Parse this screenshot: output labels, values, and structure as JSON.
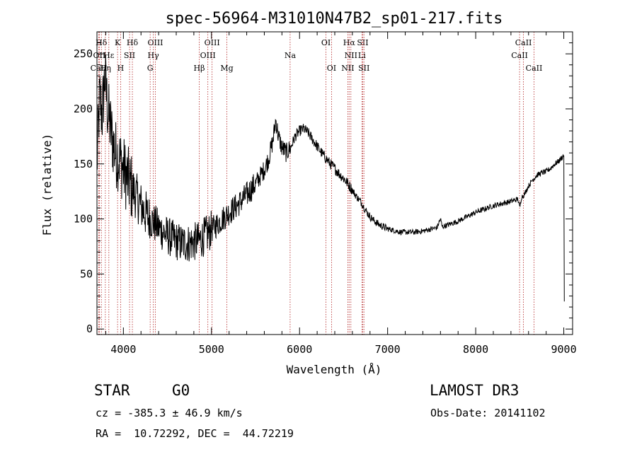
{
  "chart_data": {
    "type": "line",
    "title": "spec-56964-M31010N47B2_sp01-217.fits",
    "xlabel": "Wavelength (Å)",
    "ylabel": "Flux (relative)",
    "xlim": [
      3700,
      9100
    ],
    "ylim": [
      -5,
      270
    ],
    "x_ticks": [
      4000,
      5000,
      6000,
      7000,
      8000,
      9000
    ],
    "y_ticks": [
      0,
      50,
      100,
      150,
      200,
      250
    ],
    "series": [
      {
        "name": "flux",
        "points": [
          [
            3700,
            150
          ],
          [
            3730,
            210
          ],
          [
            3760,
            195
          ],
          [
            3790,
            230
          ],
          [
            3820,
            200
          ],
          [
            3850,
            185
          ],
          [
            3880,
            170
          ],
          [
            3910,
            160
          ],
          [
            3950,
            155
          ],
          [
            4000,
            145
          ],
          [
            4050,
            135
          ],
          [
            4100,
            128
          ],
          [
            4150,
            120
          ],
          [
            4200,
            112
          ],
          [
            4250,
            105
          ],
          [
            4300,
            100
          ],
          [
            4350,
            96
          ],
          [
            4400,
            92
          ],
          [
            4450,
            88
          ],
          [
            4500,
            85
          ],
          [
            4550,
            82
          ],
          [
            4600,
            80
          ],
          [
            4650,
            78
          ],
          [
            4700,
            78
          ],
          [
            4750,
            78
          ],
          [
            4800,
            79
          ],
          [
            4850,
            80
          ],
          [
            4900,
            83
          ],
          [
            4950,
            86
          ],
          [
            5000,
            90
          ],
          [
            5100,
            98
          ],
          [
            5200,
            106
          ],
          [
            5300,
            113
          ],
          [
            5400,
            122
          ],
          [
            5500,
            132
          ],
          [
            5600,
            145
          ],
          [
            5650,
            155
          ],
          [
            5700,
            172
          ],
          [
            5730,
            190
          ],
          [
            5760,
            175
          ],
          [
            5800,
            165
          ],
          [
            5850,
            160
          ],
          [
            5900,
            165
          ],
          [
            5950,
            175
          ],
          [
            6000,
            180
          ],
          [
            6050,
            182
          ],
          [
            6100,
            178
          ],
          [
            6150,
            172
          ],
          [
            6200,
            166
          ],
          [
            6250,
            160
          ],
          [
            6300,
            155
          ],
          [
            6350,
            150
          ],
          [
            6400,
            146
          ],
          [
            6450,
            141
          ],
          [
            6500,
            137
          ],
          [
            6550,
            132
          ],
          [
            6600,
            126
          ],
          [
            6650,
            120
          ],
          [
            6700,
            115
          ],
          [
            6750,
            108
          ],
          [
            6800,
            102
          ],
          [
            6850,
            98
          ],
          [
            6900,
            95
          ],
          [
            6950,
            93
          ],
          [
            7000,
            91
          ],
          [
            7050,
            90
          ],
          [
            7100,
            89
          ],
          [
            7150,
            88
          ],
          [
            7200,
            88
          ],
          [
            7300,
            88
          ],
          [
            7400,
            89
          ],
          [
            7500,
            91
          ],
          [
            7560,
            92
          ],
          [
            7600,
            100
          ],
          [
            7620,
            93
          ],
          [
            7700,
            95
          ],
          [
            7800,
            98
          ],
          [
            7900,
            102
          ],
          [
            8000,
            106
          ],
          [
            8100,
            109
          ],
          [
            8200,
            112
          ],
          [
            8300,
            114
          ],
          [
            8400,
            116
          ],
          [
            8480,
            118
          ],
          [
            8500,
            110
          ],
          [
            8520,
            120
          ],
          [
            8550,
            122
          ],
          [
            8600,
            130
          ],
          [
            8650,
            136
          ],
          [
            8700,
            140
          ],
          [
            8750,
            142
          ],
          [
            8800,
            143
          ],
          [
            8850,
            146
          ],
          [
            8900,
            150
          ],
          [
            8950,
            153
          ],
          [
            9000,
            158
          ],
          [
            9003,
            100
          ],
          [
            9006,
            25
          ]
        ]
      }
    ],
    "spectral_lines": [
      {
        "label": "Hδ",
        "wavelength": 3750,
        "row": 0
      },
      {
        "label": "K",
        "wavelength": 3934,
        "row": 0
      },
      {
        "label": "Hδ",
        "wavelength": 4102,
        "row": 0
      },
      {
        "label": "OIII",
        "wavelength": 4363,
        "row": 0
      },
      {
        "label": "OIII",
        "wavelength": 5007,
        "row": 0
      },
      {
        "label": "OI",
        "wavelength": 6300,
        "row": 0
      },
      {
        "label": "Hα",
        "wavelength": 6563,
        "row": 0
      },
      {
        "label": "SII",
        "wavelength": 6717,
        "row": 0
      },
      {
        "label": "CaII",
        "wavelength": 8542,
        "row": 0
      },
      {
        "label": "OII",
        "wavelength": 3727,
        "row": 1
      },
      {
        "label": "Hε",
        "wavelength": 3835,
        "row": 1
      },
      {
        "label": "SII",
        "wavelength": 4070,
        "row": 1
      },
      {
        "label": "Hγ",
        "wavelength": 4340,
        "row": 1
      },
      {
        "label": "OIII",
        "wavelength": 4959,
        "row": 1
      },
      {
        "label": "Na",
        "wavelength": 5893,
        "row": 1
      },
      {
        "label": "NII",
        "wavelength": 6583,
        "row": 1
      },
      {
        "label": "Li",
        "wavelength": 6708,
        "row": 1
      },
      {
        "label": "CaII",
        "wavelength": 8498,
        "row": 1
      },
      {
        "label": "CaII",
        "wavelength": 3720,
        "row": 2
      },
      {
        "label": "Hη",
        "wavelength": 3795,
        "row": 2
      },
      {
        "label": "H",
        "wavelength": 3969,
        "row": 2
      },
      {
        "label": "G",
        "wavelength": 4304,
        "row": 2
      },
      {
        "label": "Hβ",
        "wavelength": 4861,
        "row": 2
      },
      {
        "label": "Mg",
        "wavelength": 5175,
        "row": 2
      },
      {
        "label": "OI",
        "wavelength": 6363,
        "row": 2
      },
      {
        "label": "NII",
        "wavelength": 6548,
        "row": 2
      },
      {
        "label": "SII",
        "wavelength": 6731,
        "row": 2
      },
      {
        "label": "CaII",
        "wavelength": 8662,
        "row": 2
      }
    ]
  },
  "info": {
    "object_class": "STAR",
    "subclass": "G0",
    "survey": "LAMOST DR3",
    "redshift": "cz = -385.3 ± 46.9 km/s",
    "obs_date": "Obs-Date: 20141102",
    "coords": "RA =  10.72292, DEC =  44.72219"
  }
}
